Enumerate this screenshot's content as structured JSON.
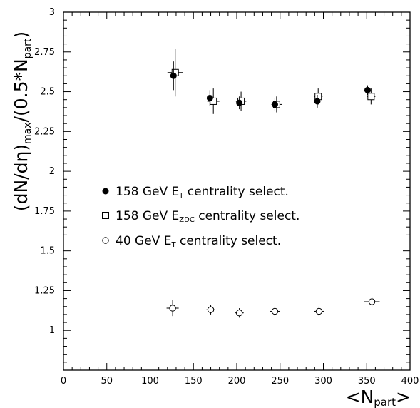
{
  "chart_data": {
    "type": "scatter",
    "title": "",
    "xlabel": {
      "pre": "<N",
      "sub": "part",
      "post": ">"
    },
    "ylabel": {
      "p1": "(dN/dη)",
      "sub1": "max",
      "p2": "/(0.5*N",
      "sub2": "part",
      "p3": ")"
    },
    "xlim": [
      0,
      400
    ],
    "ylim": [
      0.75,
      3
    ],
    "x_ticks": [
      0,
      50,
      100,
      150,
      200,
      250,
      300,
      350,
      400
    ],
    "x_tick_labels": [
      "0",
      "50",
      "100",
      "150",
      "200",
      "250",
      "300",
      "350",
      "400"
    ],
    "y_ticks": [
      1,
      1.25,
      1.5,
      1.75,
      2,
      2.25,
      2.5,
      2.75,
      3
    ],
    "y_tick_labels": [
      "1",
      "1.25",
      "1.5",
      "1.75",
      "2",
      "2.25",
      "2.5",
      "2.75",
      "3"
    ],
    "grid": false,
    "legend_position": "left-middle",
    "series": [
      {
        "label": {
          "pre": "158 GeV E",
          "sub": "T",
          "post": " centrality select."
        },
        "marker": "filled-circle",
        "points": [
          {
            "x": 127,
            "y": 2.6,
            "yerr": 0.09,
            "xerr": 3
          },
          {
            "x": 169,
            "y": 2.46,
            "yerr": 0.05,
            "xerr": 3
          },
          {
            "x": 203,
            "y": 2.43,
            "yerr": 0.04,
            "xerr": 3
          },
          {
            "x": 244,
            "y": 2.42,
            "yerr": 0.04,
            "xerr": 3
          },
          {
            "x": 293,
            "y": 2.44,
            "yerr": 0.04,
            "xerr": 3
          },
          {
            "x": 351,
            "y": 2.51,
            "yerr": 0.03,
            "xerr": 3
          }
        ]
      },
      {
        "label": {
          "pre": "158 GeV E",
          "sub": "ZDC",
          "post": " centrality select."
        },
        "marker": "open-square",
        "points": [
          {
            "x": 129,
            "y": 2.62,
            "yerr": 0.15,
            "xerr": 9
          },
          {
            "x": 173,
            "y": 2.44,
            "yerr": 0.08,
            "xerr": 7
          },
          {
            "x": 205,
            "y": 2.44,
            "yerr": 0.06,
            "xerr": 6
          },
          {
            "x": 246,
            "y": 2.42,
            "yerr": 0.05,
            "xerr": 6
          },
          {
            "x": 294,
            "y": 2.47,
            "yerr": 0.05,
            "xerr": 5
          },
          {
            "x": 355,
            "y": 2.47,
            "yerr": 0.05,
            "xerr": 5
          }
        ]
      },
      {
        "label": {
          "pre": "40 GeV E",
          "sub": "T",
          "post": " centrality select."
        },
        "marker": "open-circle",
        "points": [
          {
            "x": 126,
            "y": 1.14,
            "yerr": 0.05,
            "xerr": 7
          },
          {
            "x": 170,
            "y": 1.13,
            "yerr": 0.03,
            "xerr": 5
          },
          {
            "x": 203,
            "y": 1.11,
            "yerr": 0.03,
            "xerr": 5
          },
          {
            "x": 244,
            "y": 1.12,
            "yerr": 0.03,
            "xerr": 6
          },
          {
            "x": 295,
            "y": 1.12,
            "yerr": 0.03,
            "xerr": 6
          },
          {
            "x": 356,
            "y": 1.18,
            "yerr": 0.03,
            "xerr": 9
          }
        ]
      }
    ]
  }
}
